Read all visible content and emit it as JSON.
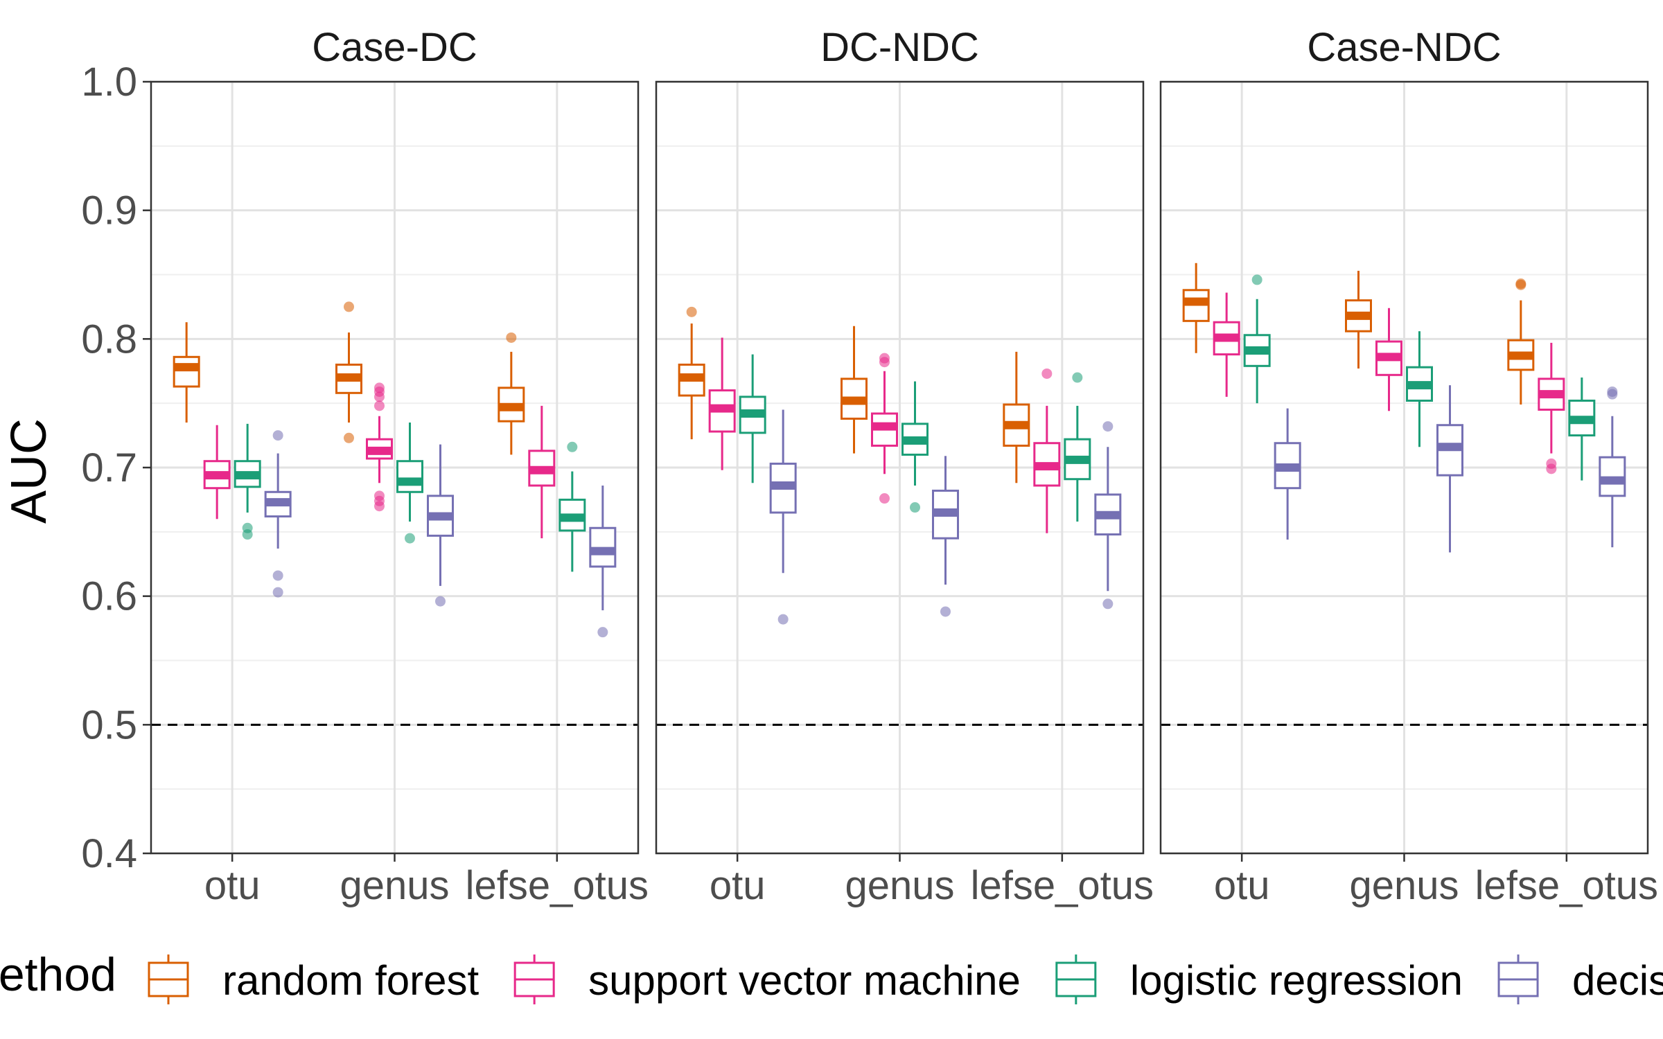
{
  "chart_data": {
    "type": "box",
    "ylabel": "AUC",
    "ylim": [
      0.4,
      1.0
    ],
    "yticks": [
      "0.4",
      "0.5",
      "0.6",
      "0.7",
      "0.8",
      "0.9",
      "1.0"
    ],
    "reference_line": {
      "y": 0.5,
      "style": "dashed"
    },
    "grid": true,
    "facets": [
      "Case-DC",
      "DC-NDC",
      "Case-NDC"
    ],
    "categories": [
      "otu",
      "genus",
      "lefse_otus"
    ],
    "legend": {
      "title": "method",
      "position": "bottom",
      "entries": [
        "random forest",
        "support vector machine",
        "logistic regression",
        "decision tree"
      ]
    },
    "colors": {
      "random forest": "#d95f02",
      "support vector machine": "#e7298a",
      "logistic regression": "#1b9e77",
      "decision tree": "#7570b3"
    },
    "panels": [
      {
        "facet": "Case-DC",
        "groups": [
          {
            "category": "otu",
            "boxes": [
              {
                "method": "random forest",
                "min": 0.735,
                "q1": 0.763,
                "median": 0.778,
                "q3": 0.786,
                "max": 0.813,
                "outliers": []
              },
              {
                "method": "support vector machine",
                "min": 0.66,
                "q1": 0.684,
                "median": 0.694,
                "q3": 0.705,
                "max": 0.733,
                "outliers": []
              },
              {
                "method": "logistic regression",
                "min": 0.665,
                "q1": 0.685,
                "median": 0.694,
                "q3": 0.705,
                "max": 0.734,
                "outliers": [
                  0.653,
                  0.648
                ]
              },
              {
                "method": "decision tree",
                "min": 0.637,
                "q1": 0.662,
                "median": 0.673,
                "q3": 0.681,
                "max": 0.711,
                "outliers": [
                  0.725,
                  0.616,
                  0.603
                ]
              }
            ]
          },
          {
            "category": "genus",
            "boxes": [
              {
                "method": "random forest",
                "min": 0.735,
                "q1": 0.758,
                "median": 0.77,
                "q3": 0.78,
                "max": 0.805,
                "outliers": [
                  0.825,
                  0.723
                ]
              },
              {
                "method": "support vector machine",
                "min": 0.688,
                "q1": 0.707,
                "median": 0.713,
                "q3": 0.722,
                "max": 0.74,
                "outliers": [
                  0.762,
                  0.759,
                  0.755,
                  0.748,
                  0.678,
                  0.674,
                  0.67
                ]
              },
              {
                "method": "logistic regression",
                "min": 0.658,
                "q1": 0.681,
                "median": 0.689,
                "q3": 0.705,
                "max": 0.735,
                "outliers": [
                  0.645
                ]
              },
              {
                "method": "decision tree",
                "min": 0.608,
                "q1": 0.647,
                "median": 0.662,
                "q3": 0.678,
                "max": 0.718,
                "outliers": [
                  0.596
                ]
              }
            ]
          },
          {
            "category": "lefse_otus",
            "boxes": [
              {
                "method": "random forest",
                "min": 0.71,
                "q1": 0.736,
                "median": 0.747,
                "q3": 0.762,
                "max": 0.79,
                "outliers": [
                  0.801
                ]
              },
              {
                "method": "support vector machine",
                "min": 0.645,
                "q1": 0.686,
                "median": 0.698,
                "q3": 0.713,
                "max": 0.748,
                "outliers": []
              },
              {
                "method": "logistic regression",
                "min": 0.619,
                "q1": 0.651,
                "median": 0.661,
                "q3": 0.675,
                "max": 0.697,
                "outliers": [
                  0.716
                ]
              },
              {
                "method": "decision tree",
                "min": 0.589,
                "q1": 0.623,
                "median": 0.635,
                "q3": 0.653,
                "max": 0.686,
                "outliers": [
                  0.572
                ]
              }
            ]
          }
        ]
      },
      {
        "facet": "DC-NDC",
        "groups": [
          {
            "category": "otu",
            "boxes": [
              {
                "method": "random forest",
                "min": 0.722,
                "q1": 0.756,
                "median": 0.77,
                "q3": 0.78,
                "max": 0.812,
                "outliers": [
                  0.821
                ]
              },
              {
                "method": "support vector machine",
                "min": 0.698,
                "q1": 0.728,
                "median": 0.746,
                "q3": 0.76,
                "max": 0.801,
                "outliers": []
              },
              {
                "method": "logistic regression",
                "min": 0.688,
                "q1": 0.727,
                "median": 0.742,
                "q3": 0.755,
                "max": 0.788,
                "outliers": []
              },
              {
                "method": "decision tree",
                "min": 0.618,
                "q1": 0.665,
                "median": 0.686,
                "q3": 0.703,
                "max": 0.745,
                "outliers": [
                  0.582
                ]
              }
            ]
          },
          {
            "category": "genus",
            "boxes": [
              {
                "method": "random forest",
                "min": 0.711,
                "q1": 0.738,
                "median": 0.752,
                "q3": 0.769,
                "max": 0.81,
                "outliers": []
              },
              {
                "method": "support vector machine",
                "min": 0.695,
                "q1": 0.717,
                "median": 0.732,
                "q3": 0.742,
                "max": 0.775,
                "outliers": [
                  0.785,
                  0.782,
                  0.676
                ]
              },
              {
                "method": "logistic regression",
                "min": 0.686,
                "q1": 0.71,
                "median": 0.721,
                "q3": 0.734,
                "max": 0.767,
                "outliers": [
                  0.669
                ]
              },
              {
                "method": "decision tree",
                "min": 0.609,
                "q1": 0.645,
                "median": 0.665,
                "q3": 0.682,
                "max": 0.709,
                "outliers": [
                  0.588
                ]
              }
            ]
          },
          {
            "category": "lefse_otus",
            "boxes": [
              {
                "method": "random forest",
                "min": 0.688,
                "q1": 0.717,
                "median": 0.733,
                "q3": 0.749,
                "max": 0.79,
                "outliers": []
              },
              {
                "method": "support vector machine",
                "min": 0.649,
                "q1": 0.686,
                "median": 0.701,
                "q3": 0.719,
                "max": 0.748,
                "outliers": [
                  0.773
                ]
              },
              {
                "method": "logistic regression",
                "min": 0.658,
                "q1": 0.691,
                "median": 0.706,
                "q3": 0.722,
                "max": 0.748,
                "outliers": [
                  0.77
                ]
              },
              {
                "method": "decision tree",
                "min": 0.604,
                "q1": 0.648,
                "median": 0.663,
                "q3": 0.679,
                "max": 0.716,
                "outliers": [
                  0.732,
                  0.594
                ]
              }
            ]
          }
        ]
      },
      {
        "facet": "Case-NDC",
        "groups": [
          {
            "category": "otu",
            "boxes": [
              {
                "method": "random forest",
                "min": 0.789,
                "q1": 0.814,
                "median": 0.829,
                "q3": 0.838,
                "max": 0.859,
                "outliers": []
              },
              {
                "method": "support vector machine",
                "min": 0.755,
                "q1": 0.788,
                "median": 0.801,
                "q3": 0.813,
                "max": 0.836,
                "outliers": []
              },
              {
                "method": "logistic regression",
                "min": 0.75,
                "q1": 0.779,
                "median": 0.791,
                "q3": 0.803,
                "max": 0.831,
                "outliers": [
                  0.846
                ]
              },
              {
                "method": "decision tree",
                "min": 0.644,
                "q1": 0.684,
                "median": 0.7,
                "q3": 0.719,
                "max": 0.746,
                "outliers": []
              }
            ]
          },
          {
            "category": "genus",
            "boxes": [
              {
                "method": "random forest",
                "min": 0.777,
                "q1": 0.806,
                "median": 0.818,
                "q3": 0.83,
                "max": 0.853,
                "outliers": []
              },
              {
                "method": "support vector machine",
                "min": 0.744,
                "q1": 0.772,
                "median": 0.786,
                "q3": 0.798,
                "max": 0.824,
                "outliers": []
              },
              {
                "method": "logistic regression",
                "min": 0.716,
                "q1": 0.752,
                "median": 0.764,
                "q3": 0.778,
                "max": 0.806,
                "outliers": []
              },
              {
                "method": "decision tree",
                "min": 0.634,
                "q1": 0.694,
                "median": 0.716,
                "q3": 0.733,
                "max": 0.764,
                "outliers": []
              }
            ]
          },
          {
            "category": "lefse_otus",
            "boxes": [
              {
                "method": "random forest",
                "min": 0.749,
                "q1": 0.776,
                "median": 0.787,
                "q3": 0.799,
                "max": 0.83,
                "outliers": [
                  0.843,
                  0.842
                ]
              },
              {
                "method": "support vector machine",
                "min": 0.711,
                "q1": 0.745,
                "median": 0.757,
                "q3": 0.769,
                "max": 0.797,
                "outliers": [
                  0.703,
                  0.699
                ]
              },
              {
                "method": "logistic regression",
                "min": 0.69,
                "q1": 0.725,
                "median": 0.737,
                "q3": 0.752,
                "max": 0.77,
                "outliers": []
              },
              {
                "method": "decision tree",
                "min": 0.638,
                "q1": 0.678,
                "median": 0.69,
                "q3": 0.708,
                "max": 0.74,
                "outliers": [
                  0.759,
                  0.757
                ]
              }
            ]
          }
        ]
      }
    ]
  }
}
